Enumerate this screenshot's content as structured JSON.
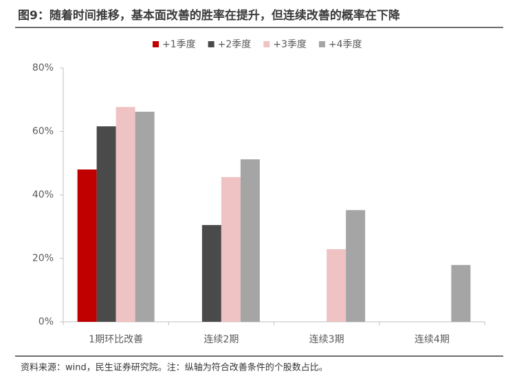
{
  "chart_data": {
    "type": "bar",
    "title": "图9：随着时间推移，基本面改善的胜率在提升，但连续改善的概率在下降",
    "source": "资料来源：wind，民生证券研究院。注：纵轴为符合改善条件的个股数占比。",
    "categories": [
      "1期环比改善",
      "连续2期",
      "连续3期",
      "连续4期"
    ],
    "series": [
      {
        "name": "+1季度",
        "color": "#c00000",
        "values": [
          48.0,
          null,
          null,
          null
        ]
      },
      {
        "name": "+2季度",
        "color": "#4a4a4a",
        "values": [
          61.6,
          30.5,
          null,
          null
        ]
      },
      {
        "name": "+3季度",
        "color": "#efc3c3",
        "values": [
          67.7,
          45.6,
          22.9,
          null
        ]
      },
      {
        "name": "+4季度",
        "color": "#a5a5a5",
        "values": [
          66.2,
          51.2,
          35.2,
          17.9
        ]
      }
    ],
    "ylim": [
      0,
      80
    ],
    "yticks": [
      {
        "value": 0,
        "label": "0%"
      },
      {
        "value": 20,
        "label": "20%"
      },
      {
        "value": 40,
        "label": "40%"
      },
      {
        "value": 60,
        "label": "60%"
      },
      {
        "value": 80,
        "label": "80%"
      }
    ],
    "legend": "top"
  }
}
